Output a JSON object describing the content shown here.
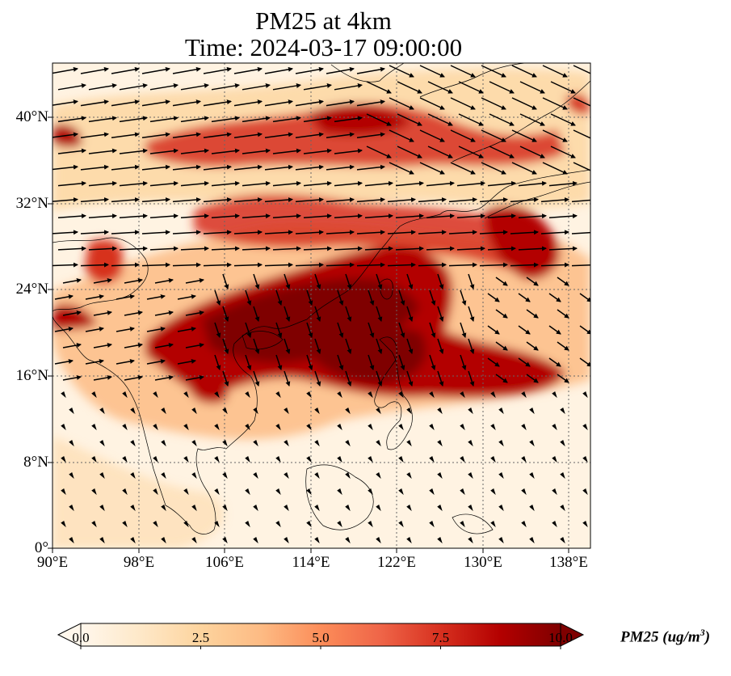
{
  "title": {
    "line1": "PM25 at 4km",
    "line2": "Time: 2024-03-17 09:00:00"
  },
  "map": {
    "variable": "PM25",
    "level": "4km",
    "time": "2024-03-17 09:00:00",
    "lon_range": [
      90,
      140
    ],
    "lat_range": [
      0,
      45
    ],
    "gridlines": "dotted",
    "lon_ticks": [
      "90°E",
      "98°E",
      "106°E",
      "114°E",
      "122°E",
      "130°E",
      "138°E"
    ],
    "lat_ticks": [
      "0°",
      "8°N",
      "16°N",
      "24°N",
      "32°N",
      "40°N"
    ],
    "colormap": "OrRd",
    "wind_vectors": true
  },
  "colorbar": {
    "label": "PM25 (ug/m",
    "label_sup": "3",
    "label_end": ")",
    "min": 0.0,
    "max": 10.0,
    "ticks": [
      "0.0",
      "2.5",
      "5.0",
      "7.5",
      "10.0"
    ],
    "extend": "both",
    "colors": [
      "#fff7ec",
      "#fee8c8",
      "#fdd49e",
      "#fdbb84",
      "#fc8d59",
      "#ef6548",
      "#d7301f",
      "#b30000",
      "#7f0000"
    ]
  }
}
